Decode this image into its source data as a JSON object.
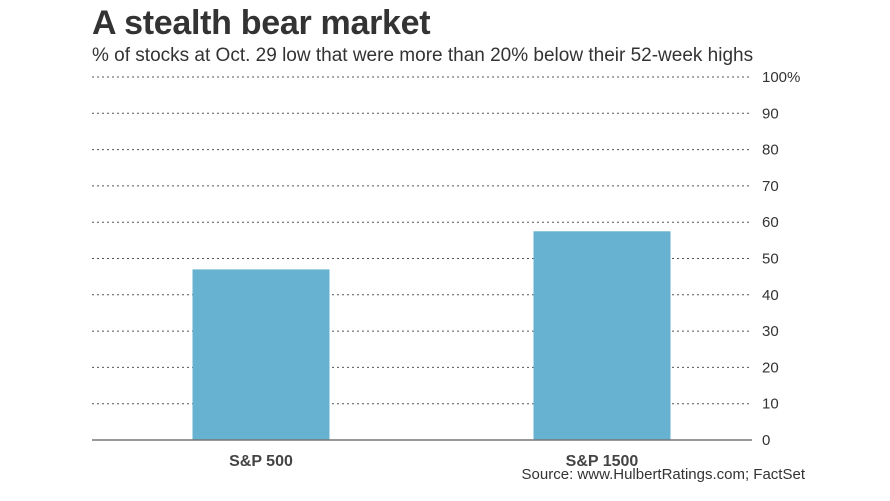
{
  "chart_data": {
    "type": "bar",
    "title": "A stealth bear market",
    "subtitle": "% of stocks at Oct. 29 low that were more than 20% below their 52-week highs",
    "categories": [
      "S&P 500",
      "S&P 1500"
    ],
    "values": [
      47,
      57.5
    ],
    "ylim": [
      0,
      100
    ],
    "yticks": [
      "0",
      "10",
      "20",
      "30",
      "40",
      "50",
      "60",
      "70",
      "80",
      "90",
      "100%"
    ],
    "grid": true,
    "bar_color": "#67b2d0",
    "source": "Source: www.HulbertRatings.com; FactSet"
  }
}
